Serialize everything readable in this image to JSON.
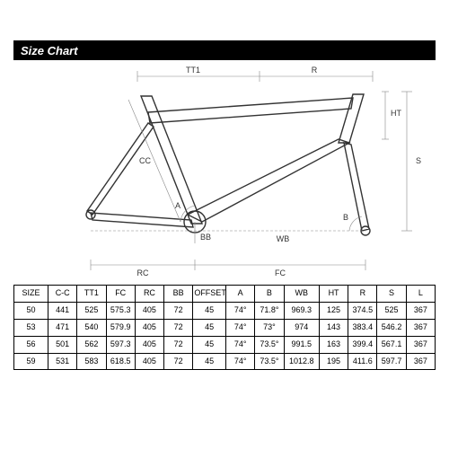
{
  "header": {
    "title": "Size Chart"
  },
  "diagram": {
    "labels": {
      "TT1": "TT1",
      "R": "R",
      "CC": "CC",
      "HT": "HT",
      "S": "S",
      "A": "A",
      "B": "B",
      "WB": "WB",
      "FC": "FC",
      "RC": "RC",
      "BB": "BB"
    },
    "stroke_color": "#333",
    "dim_color": "#888"
  },
  "table": {
    "columns": [
      "SIZE",
      "C-C",
      "TT1",
      "FC",
      "RC",
      "BB",
      "OFFSET",
      "A",
      "B",
      "WB",
      "HT",
      "R",
      "S",
      "L"
    ],
    "rows": [
      [
        "50",
        "441",
        "525",
        "575.3",
        "405",
        "72",
        "45",
        "74°",
        "71.8°",
        "969.3",
        "125",
        "374.5",
        "525",
        "367"
      ],
      [
        "53",
        "471",
        "540",
        "579.9",
        "405",
        "72",
        "45",
        "74°",
        "73°",
        "974",
        "143",
        "383.4",
        "546.2",
        "367"
      ],
      [
        "56",
        "501",
        "562",
        "597.3",
        "405",
        "72",
        "45",
        "74°",
        "73.5°",
        "991.5",
        "163",
        "399.4",
        "567.1",
        "367"
      ],
      [
        "59",
        "531",
        "583",
        "618.5",
        "405",
        "72",
        "45",
        "74°",
        "73.5°",
        "1012.8",
        "195",
        "411.6",
        "597.7",
        "367"
      ]
    ],
    "border_color": "#000000",
    "font_size_pt": 7
  }
}
